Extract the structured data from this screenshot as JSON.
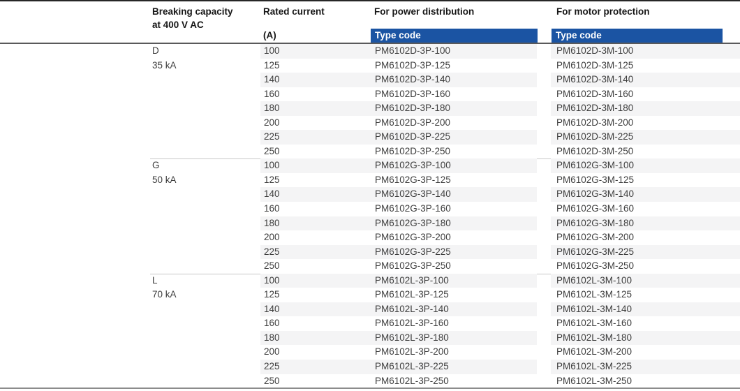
{
  "colors": {
    "header_bar_blue": "#1b54a3",
    "row_stripe": "#f4f4f5"
  },
  "table": {
    "headers": {
      "breaking_capacity_line1": "Breaking capacity",
      "breaking_capacity_line2": "at 400 V AC",
      "rated_current": "Rated current",
      "rated_current_unit": "(A)",
      "power_distribution": "For power distribution",
      "motor_protection": "For motor protection",
      "type_code": "Type code"
    },
    "sections": [
      {
        "label": "D",
        "capacity": "35 kA",
        "rows": [
          {
            "current": "100",
            "power_code": "PM6102D-3P-100",
            "motor_code": "PM6102D-3M-100"
          },
          {
            "current": "125",
            "power_code": "PM6102D-3P-125",
            "motor_code": "PM6102D-3M-125"
          },
          {
            "current": "140",
            "power_code": "PM6102D-3P-140",
            "motor_code": "PM6102D-3M-140"
          },
          {
            "current": "160",
            "power_code": "PM6102D-3P-160",
            "motor_code": "PM6102D-3M-160"
          },
          {
            "current": "180",
            "power_code": "PM6102D-3P-180",
            "motor_code": "PM6102D-3M-180"
          },
          {
            "current": "200",
            "power_code": "PM6102D-3P-200",
            "motor_code": "PM6102D-3M-200"
          },
          {
            "current": "225",
            "power_code": "PM6102D-3P-225",
            "motor_code": "PM6102D-3M-225"
          },
          {
            "current": "250",
            "power_code": "PM6102D-3P-250",
            "motor_code": "PM6102D-3M-250"
          }
        ]
      },
      {
        "label": "G",
        "capacity": "50 kA",
        "rows": [
          {
            "current": "100",
            "power_code": "PM6102G-3P-100",
            "motor_code": "PM6102G-3M-100"
          },
          {
            "current": "125",
            "power_code": "PM6102G-3P-125",
            "motor_code": "PM6102G-3M-125"
          },
          {
            "current": "140",
            "power_code": "PM6102G-3P-140",
            "motor_code": "PM6102G-3M-140"
          },
          {
            "current": "160",
            "power_code": "PM6102G-3P-160",
            "motor_code": "PM6102G-3M-160"
          },
          {
            "current": "180",
            "power_code": "PM6102G-3P-180",
            "motor_code": "PM6102G-3M-180"
          },
          {
            "current": "200",
            "power_code": "PM6102G-3P-200",
            "motor_code": "PM6102G-3M-200"
          },
          {
            "current": "225",
            "power_code": "PM6102G-3P-225",
            "motor_code": "PM6102G-3M-225"
          },
          {
            "current": "250",
            "power_code": "PM6102G-3P-250",
            "motor_code": "PM6102G-3M-250"
          }
        ]
      },
      {
        "label": "L",
        "capacity": "70 kA",
        "rows": [
          {
            "current": "100",
            "power_code": "PM6102L-3P-100",
            "motor_code": "PM6102L-3M-100"
          },
          {
            "current": "125",
            "power_code": "PM6102L-3P-125",
            "motor_code": "PM6102L-3M-125"
          },
          {
            "current": "140",
            "power_code": "PM6102L-3P-140",
            "motor_code": "PM6102L-3M-140"
          },
          {
            "current": "160",
            "power_code": "PM6102L-3P-160",
            "motor_code": "PM6102L-3M-160"
          },
          {
            "current": "180",
            "power_code": "PM6102L-3P-180",
            "motor_code": "PM6102L-3M-180"
          },
          {
            "current": "200",
            "power_code": "PM6102L-3P-200",
            "motor_code": "PM6102L-3M-200"
          },
          {
            "current": "225",
            "power_code": "PM6102L-3P-225",
            "motor_code": "PM6102L-3M-225"
          },
          {
            "current": "250",
            "power_code": "PM6102L-3P-250",
            "motor_code": "PM6102L-3M-250"
          }
        ]
      }
    ]
  }
}
